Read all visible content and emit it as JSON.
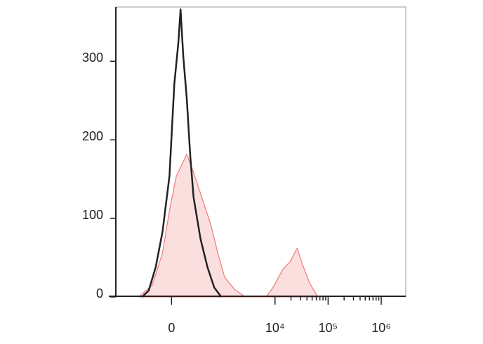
{
  "chart_data": {
    "type": "line",
    "xscale": "biexponential",
    "xlim": [
      -1250,
      2900000
    ],
    "ylim": [
      0,
      369
    ],
    "xticks": [
      0,
      {
        "value": 10000,
        "label": "10⁴"
      },
      {
        "value": 100000,
        "label": "10⁵"
      },
      {
        "value": 1000000,
        "label": "10⁶"
      }
    ],
    "xminorticks": [
      20000,
      30000,
      40000,
      50000,
      60000,
      70000,
      80000,
      90000,
      200000,
      300000,
      400000,
      500000,
      600000,
      700000,
      800000,
      900000
    ],
    "yticks": [
      0,
      100,
      200,
      300
    ],
    "series": [
      {
        "color": "#f08080",
        "fill": true,
        "x": [
          -445,
          -211,
          -90,
          -20,
          47,
          119,
          159,
          230,
          304,
          432,
          597,
          819,
          1114,
          1755,
          2756,
          6770,
          9130,
          14300,
          19300,
          26000,
          33000,
          44600,
          64000
        ],
        "values": [
          0,
          15,
          56,
          110,
          154,
          172,
          182,
          163,
          145,
          118,
          92,
          56,
          25,
          9,
          0,
          0,
          12,
          36,
          45,
          62,
          41,
          18,
          0
        ]
      },
      {
        "color": "#222222",
        "fill": false,
        "x": [
          -374,
          -261,
          -167,
          -90,
          -20,
          27,
          68,
          90,
          119,
          159,
          202,
          249,
          363,
          510,
          700,
          958
        ],
        "values": [
          0,
          8,
          38,
          83,
          154,
          271,
          324,
          366,
          307,
          253,
          181,
          127,
          74,
          38,
          12,
          0
        ]
      }
    ]
  }
}
